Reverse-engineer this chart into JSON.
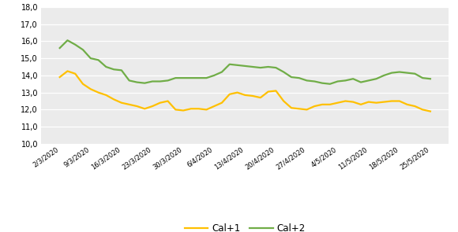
{
  "x_labels": [
    "2/3/2020",
    "9/3/2020",
    "16/3/2020",
    "23/3/2020",
    "30/3/2020",
    "6/4/2020",
    "13/4/2020",
    "20/4/2020",
    "27/4/2020",
    "4/5/2020",
    "11/5/2020",
    "18/5/2020",
    "25/5/2020"
  ],
  "cal1_values": [
    13.9,
    14.25,
    14.1,
    13.5,
    13.2,
    13.0,
    12.85,
    12.6,
    12.4,
    12.3,
    12.2,
    12.05,
    12.2,
    12.4,
    12.5,
    12.0,
    11.95,
    12.05,
    12.05,
    12.0,
    12.2,
    12.4,
    12.9,
    13.0,
    12.85,
    12.8,
    12.7,
    13.05,
    13.1,
    12.5,
    12.1,
    12.05,
    12.0,
    12.2,
    12.3,
    12.3,
    12.4,
    12.5,
    12.45,
    12.3,
    12.45,
    12.4,
    12.45,
    12.5,
    12.5,
    12.3,
    12.2,
    12.0,
    11.9
  ],
  "cal2_values": [
    15.6,
    16.05,
    15.8,
    15.5,
    15.0,
    14.9,
    14.5,
    14.35,
    14.3,
    13.7,
    13.6,
    13.55,
    13.65,
    13.65,
    13.7,
    13.85,
    13.85,
    13.85,
    13.85,
    13.85,
    14.0,
    14.2,
    14.65,
    14.6,
    14.55,
    14.5,
    14.45,
    14.5,
    14.45,
    14.2,
    13.9,
    13.85,
    13.7,
    13.65,
    13.55,
    13.5,
    13.65,
    13.7,
    13.8,
    13.6,
    13.7,
    13.8,
    14.0,
    14.15,
    14.2,
    14.15,
    14.1,
    13.85,
    13.8
  ],
  "cal1_color": "#FFC000",
  "cal2_color": "#70AD47",
  "plot_bg_color": "#EBEBEB",
  "ylim": [
    10.0,
    18.0
  ],
  "yticks": [
    10.0,
    11.0,
    12.0,
    13.0,
    14.0,
    15.0,
    16.0,
    17.0,
    18.0
  ],
  "legend_cal1": "Cal+1",
  "legend_cal2": "Cal+2",
  "linewidth": 1.6
}
